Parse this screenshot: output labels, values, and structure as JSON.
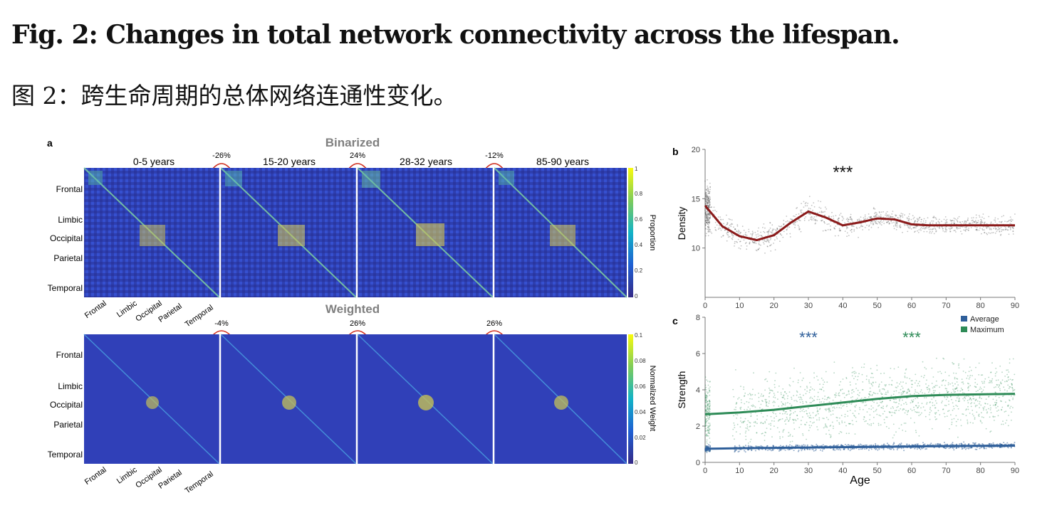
{
  "caption": {
    "title_en": "Fig. 2: Changes in total network connectivity across the lifespan.",
    "title_zh": "图 2：跨生命周期的总体网络连通性变化。"
  },
  "panel_a": {
    "label": "a",
    "binarized": {
      "title": "Binarized",
      "groups": [
        "0-5 years",
        "15-20 years",
        "28-32 years",
        "85-90 years"
      ],
      "changes": [
        "-26%",
        "24%",
        "-12%"
      ],
      "colorbar": {
        "label": "Proportion",
        "ticks": [
          "1",
          "0.8",
          "0.6",
          "0.4",
          "0.2",
          "0"
        ]
      }
    },
    "weighted": {
      "title": "Weighted",
      "changes": [
        "-4%",
        "26%",
        "26%"
      ],
      "colorbar": {
        "label": "Normalized Weight",
        "ticks": [
          "0.1",
          "0.08",
          "0.06",
          "0.04",
          "0.02",
          "0"
        ]
      }
    },
    "regions": [
      "Frontal",
      "Limbic",
      "Occipital",
      "Parietal",
      "Temporal"
    ]
  },
  "chart_data": [
    {
      "panel": "b",
      "type": "scatter",
      "ylabel": "Density",
      "xlim": [
        0,
        90
      ],
      "ylim": [
        5,
        20
      ],
      "x_ticks": [
        0,
        10,
        20,
        30,
        40,
        50,
        60,
        70,
        80,
        90
      ],
      "y_ticks": [
        10,
        15,
        20
      ],
      "annotation": "***",
      "fit": {
        "x": [
          0,
          5,
          10,
          15,
          20,
          25,
          30,
          35,
          40,
          45,
          50,
          55,
          60,
          65,
          70,
          80,
          90
        ],
        "y": [
          14.3,
          12.2,
          11.2,
          10.8,
          11.3,
          12.6,
          13.7,
          13.1,
          12.3,
          12.6,
          13.0,
          12.9,
          12.4,
          12.3,
          12.3,
          12.3,
          12.3
        ]
      },
      "fit_color": "#8b1a1a"
    },
    {
      "panel": "c",
      "type": "scatter",
      "xlabel": "Age",
      "ylabel": "Strength",
      "xlim": [
        0,
        90
      ],
      "ylim": [
        0,
        8
      ],
      "x_ticks": [
        0,
        10,
        20,
        30,
        40,
        50,
        60,
        70,
        80,
        90
      ],
      "y_ticks": [
        0,
        2,
        4,
        6,
        8
      ],
      "legend": [
        "Average",
        "Maximum"
      ],
      "annotations": [
        "***",
        "***"
      ],
      "series": [
        {
          "name": "Average",
          "color": "#2f5f9a",
          "x": [
            0,
            10,
            20,
            30,
            40,
            50,
            60,
            70,
            80,
            90
          ],
          "y": [
            0.75,
            0.78,
            0.8,
            0.82,
            0.84,
            0.86,
            0.88,
            0.9,
            0.91,
            0.92
          ]
        },
        {
          "name": "Maximum",
          "color": "#2e8b57",
          "x": [
            0,
            10,
            20,
            30,
            40,
            50,
            60,
            70,
            80,
            90
          ],
          "y": [
            2.65,
            2.75,
            2.9,
            3.1,
            3.3,
            3.5,
            3.65,
            3.72,
            3.75,
            3.78
          ]
        }
      ]
    }
  ]
}
